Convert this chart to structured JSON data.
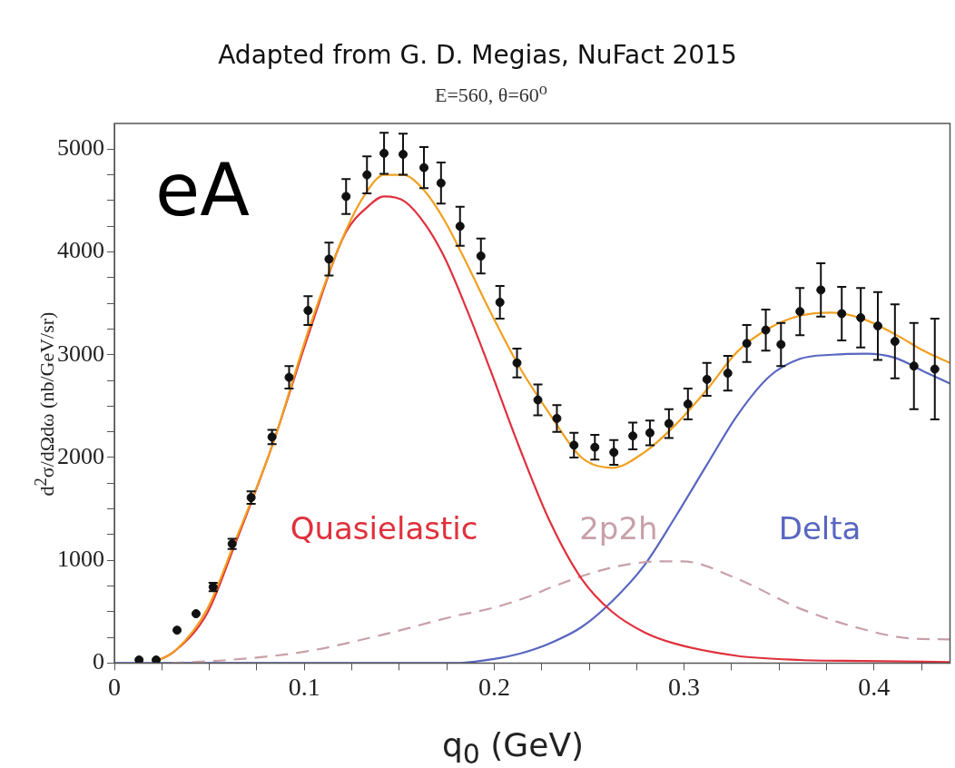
{
  "chart_data": {
    "type": "line",
    "title": "Adapted from G. D. Megias, NuFact 2015",
    "subtitle": "E=560, θ=60$^{o}$",
    "xlabel": "q$_{0}$  (GeV)",
    "ylabel": "d$^{2}$σ/dΩdω (nb/GeV/sr)",
    "annotations": [
      "eA"
    ],
    "xlim": [
      0,
      0.44
    ],
    "ylim": [
      0,
      5250
    ],
    "xticks": [
      0,
      {
        "value": 0.025,
        "label": null
      },
      {
        "value": 0.05,
        "label": null
      },
      {
        "value": 0.075,
        "label": null
      },
      0.1,
      {
        "value": 0.125,
        "label": null
      },
      {
        "value": 0.15,
        "label": null
      },
      {
        "value": 0.175,
        "label": null
      },
      0.2,
      {
        "value": 0.225,
        "label": null
      },
      {
        "value": 0.25,
        "label": null
      },
      {
        "value": 0.275,
        "label": null
      },
      0.3,
      {
        "value": 0.325,
        "label": null
      },
      {
        "value": 0.35,
        "label": null
      },
      {
        "value": 0.375,
        "label": null
      },
      0.4,
      {
        "value": 0.425,
        "label": null
      }
    ],
    "yticks": [
      0,
      {
        "value": 250,
        "label": null
      },
      {
        "value": 500,
        "label": null
      },
      {
        "value": 750,
        "label": null
      },
      1000,
      {
        "value": 1250,
        "label": null
      },
      {
        "value": 1500,
        "label": null
      },
      {
        "value": 1750,
        "label": null
      },
      2000,
      {
        "value": 2250,
        "label": null
      },
      {
        "value": 2500,
        "label": null
      },
      {
        "value": 2750,
        "label": null
      },
      3000,
      {
        "value": 3250,
        "label": null
      },
      {
        "value": 3500,
        "label": null
      },
      {
        "value": 3750,
        "label": null
      },
      4000,
      {
        "value": 4250,
        "label": null
      },
      {
        "value": 4500,
        "label": null
      },
      {
        "value": 4750,
        "label": null
      },
      5000
    ],
    "series": [
      {
        "type": "scatter",
        "marker": "circle",
        "color": "#111111",
        "x": [
          0.013,
          0.022,
          0.033,
          0.043,
          0.052,
          0.062,
          0.072,
          0.083,
          0.092,
          0.102,
          0.113,
          0.122,
          0.133,
          0.142,
          0.152,
          0.163,
          0.172,
          0.182,
          0.193,
          0.203,
          0.212,
          0.223,
          0.233,
          0.242,
          0.253,
          0.263,
          0.273,
          0.282,
          0.292,
          0.302,
          0.312,
          0.323,
          0.333,
          0.343,
          0.351,
          0.361,
          0.372,
          0.383,
          0.393,
          0.402,
          0.411,
          0.421,
          0.432
        ],
        "values": [
          30,
          30,
          320,
          480,
          740,
          1160,
          1610,
          2200,
          2780,
          3430,
          3930,
          4540,
          4750,
          4960,
          4950,
          4820,
          4670,
          4250,
          3960,
          3510,
          2920,
          2560,
          2380,
          2120,
          2100,
          2050,
          2210,
          2240,
          2330,
          2520,
          2760,
          2820,
          3110,
          3240,
          3100,
          3420,
          3630,
          3400,
          3360,
          3280,
          3130,
          2890,
          2860
        ],
        "errors": [
          null,
          null,
          null,
          null,
          40,
          50,
          60,
          70,
          110,
          140,
          160,
          170,
          180,
          200,
          200,
          200,
          200,
          190,
          170,
          160,
          140,
          150,
          130,
          120,
          120,
          120,
          130,
          120,
          140,
          150,
          160,
          170,
          180,
          200,
          210,
          230,
          260,
          260,
          290,
          330,
          360,
          420,
          490
        ]
      },
      {
        "marker": "none",
        "color": "#f0a020",
        "x": [
          0.02,
          0.032,
          0.049,
          0.063,
          0.083,
          0.103,
          0.121,
          0.132,
          0.142,
          0.152,
          0.163,
          0.174,
          0.186,
          0.196,
          0.213,
          0.229,
          0.246,
          0.262,
          0.279,
          0.295,
          0.312,
          0.328,
          0.345,
          0.361,
          0.378,
          0.394,
          0.411,
          0.427,
          0.44
        ],
        "values": [
          0,
          120,
          530,
          1160,
          2110,
          3280,
          4170,
          4560,
          4750,
          4750,
          4600,
          4300,
          3870,
          3490,
          2890,
          2430,
          2000,
          1900,
          2050,
          2310,
          2660,
          3030,
          3260,
          3380,
          3410,
          3350,
          3200,
          3030,
          2920
        ]
      },
      {
        "marker": "none",
        "name": "Quasielastic",
        "color": "#e0303c",
        "x": [
          0.02,
          0.032,
          0.049,
          0.063,
          0.083,
          0.103,
          0.121,
          0.134,
          0.142,
          0.153,
          0.164,
          0.174,
          0.186,
          0.198,
          0.213,
          0.229,
          0.246,
          0.262,
          0.279,
          0.295,
          0.328,
          0.361,
          0.394,
          0.44
        ],
        "values": [
          0,
          120,
          490,
          1130,
          2110,
          3240,
          4160,
          4450,
          4540,
          4490,
          4260,
          3940,
          3420,
          2850,
          2110,
          1390,
          820,
          500,
          300,
          190,
          70,
          30,
          20,
          10
        ]
      },
      {
        "marker": "none",
        "line_style": "dashed",
        "name": "2p2h",
        "color": "#c8a0a8",
        "x": [
          0.03,
          0.06,
          0.1,
          0.14,
          0.18,
          0.2,
          0.22,
          0.229,
          0.262,
          0.289,
          0.299,
          0.328,
          0.361,
          0.394,
          0.419,
          0.44
        ],
        "values": [
          0,
          30,
          110,
          270,
          460,
          540,
          660,
          730,
          930,
          990,
          990,
          820,
          530,
          330,
          240,
          230
        ]
      },
      {
        "marker": "none",
        "name": "Delta",
        "color": "#5866c0",
        "x": [
          0.0,
          0.18,
          0.2,
          0.213,
          0.229,
          0.246,
          0.262,
          0.279,
          0.295,
          0.312,
          0.328,
          0.345,
          0.361,
          0.378,
          0.396,
          0.411,
          0.427,
          0.44
        ],
        "values": [
          0,
          0,
          40,
          90,
          190,
          350,
          600,
          950,
          1410,
          1930,
          2410,
          2790,
          2960,
          3000,
          3010,
          2970,
          2830,
          2720
        ]
      }
    ]
  }
}
